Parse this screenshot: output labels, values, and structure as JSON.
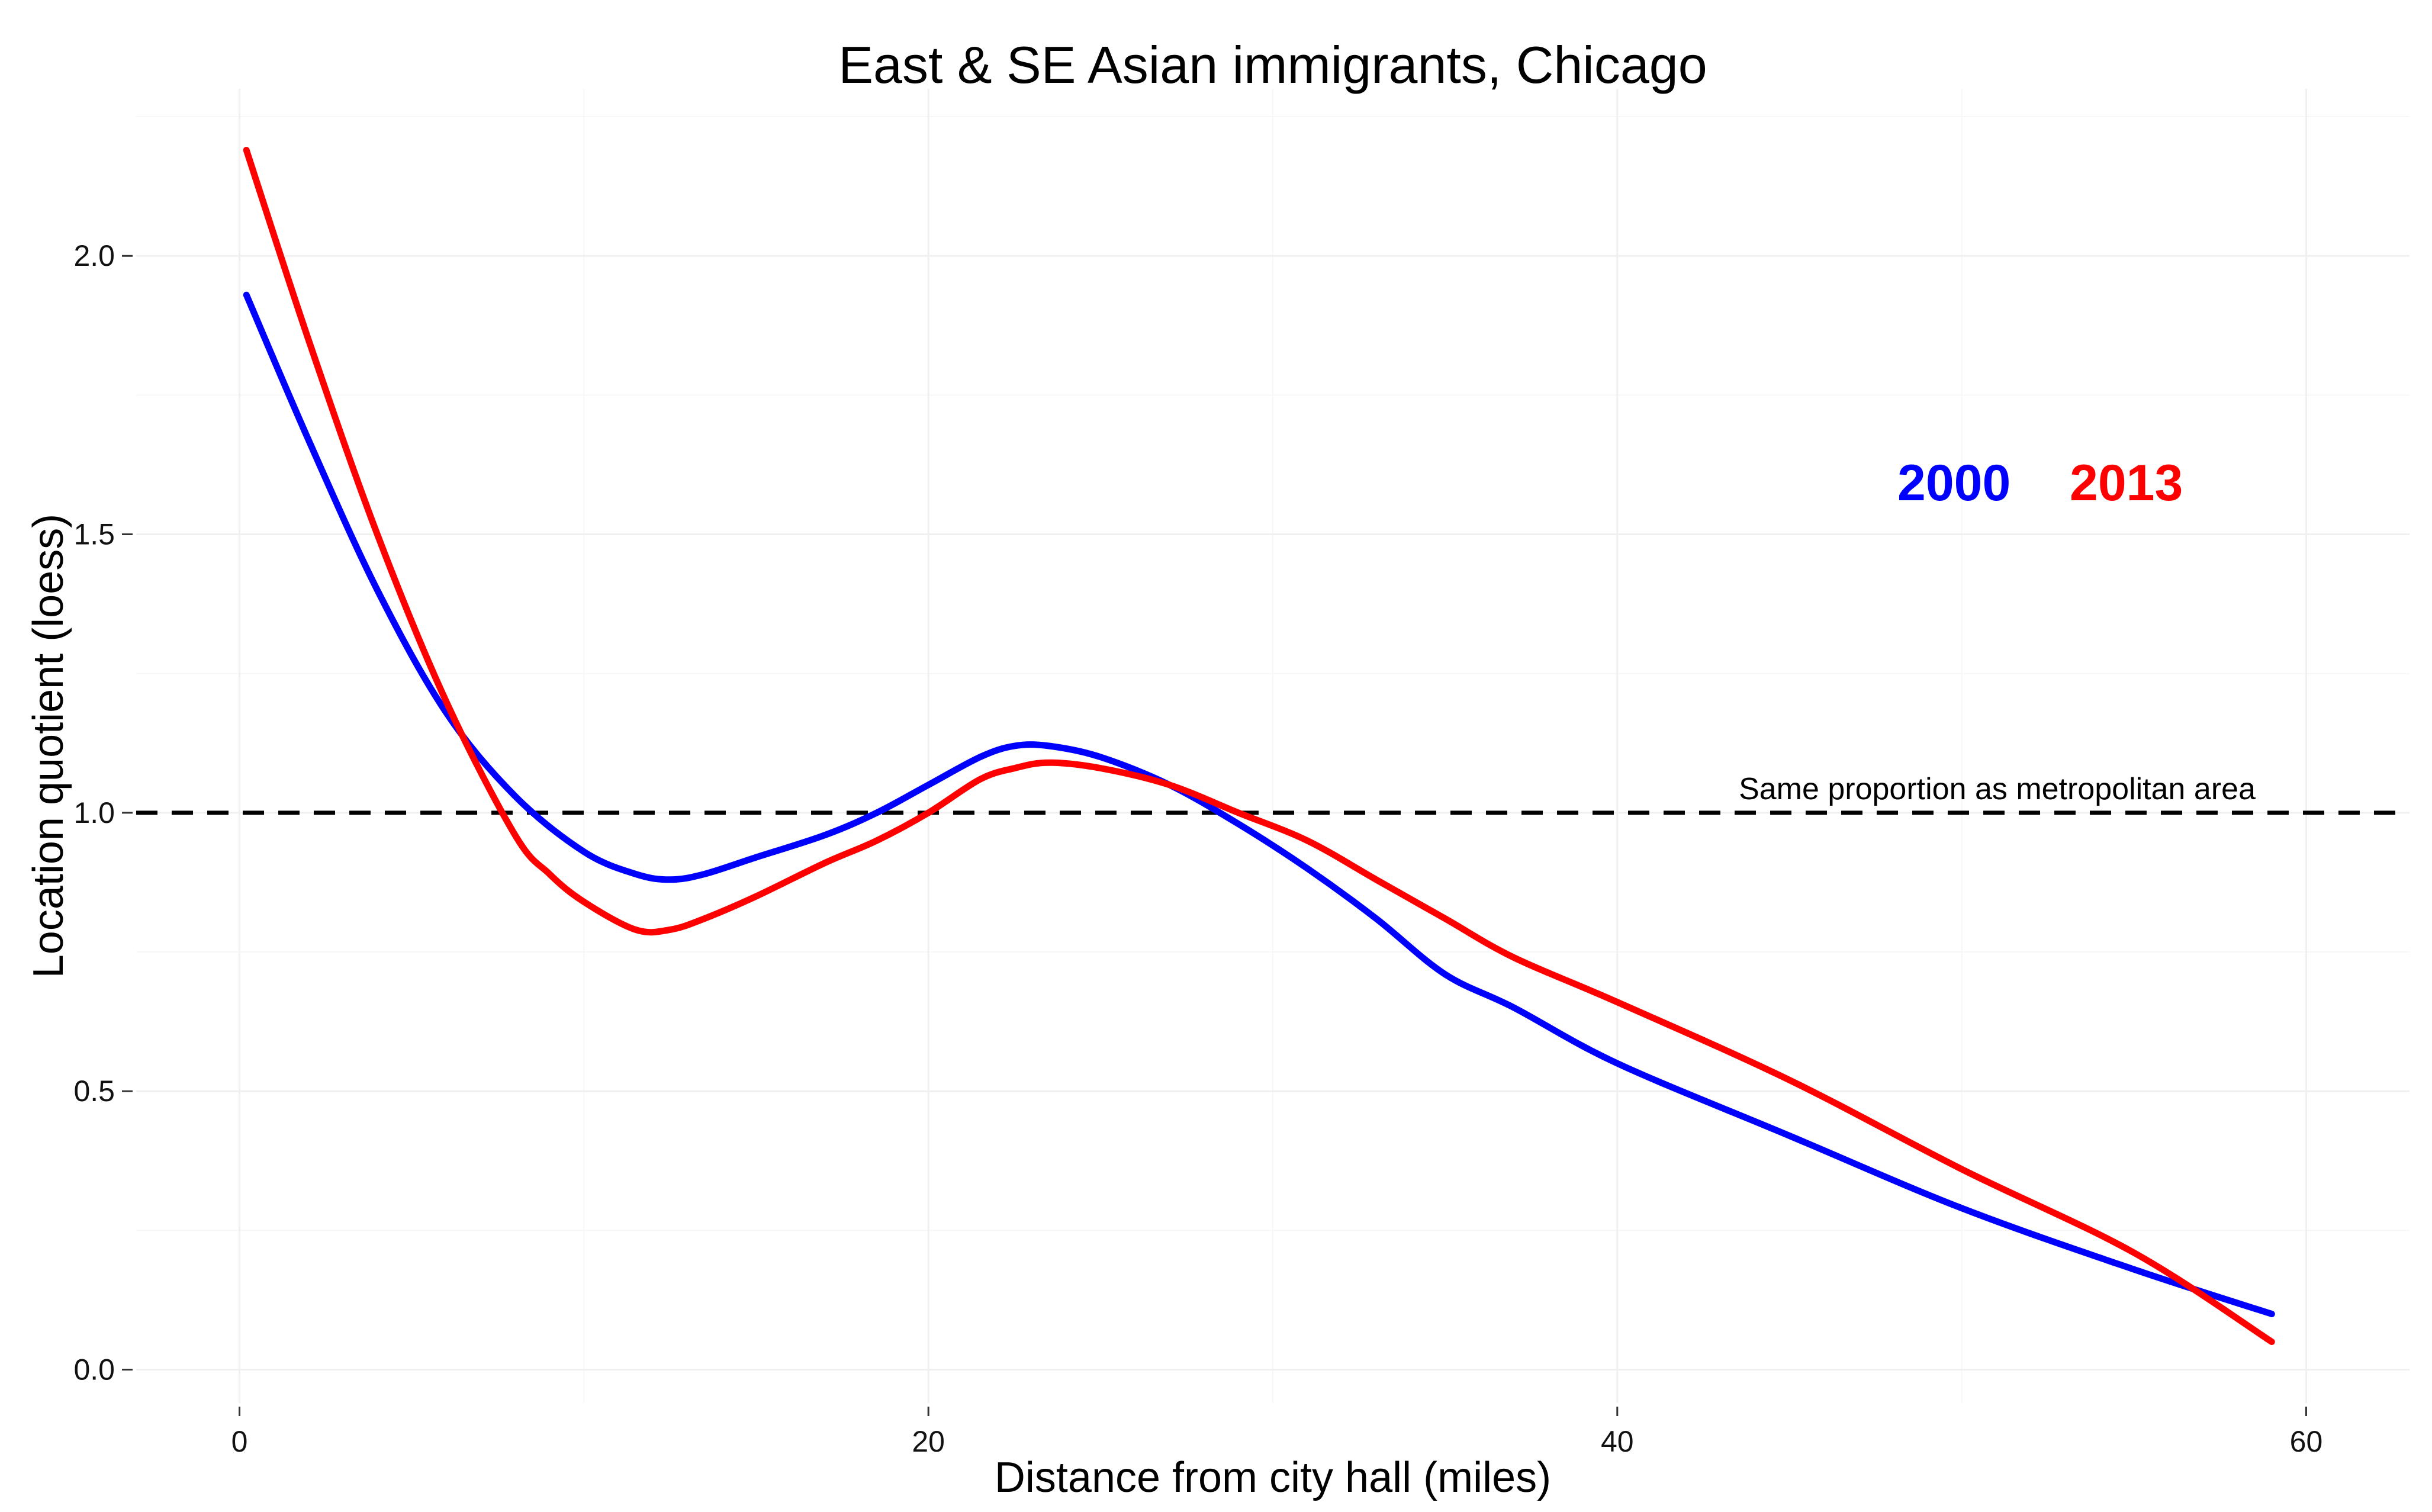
{
  "chart_data": {
    "type": "line",
    "title": "East & SE Asian immigrants, Chicago",
    "xlabel": "Distance from city hall (miles)",
    "ylabel": "Location quotient (loess)",
    "xlim": [
      -3,
      63
    ],
    "ylim": [
      -0.06,
      2.3
    ],
    "x_ticks": [
      0,
      20,
      40,
      60
    ],
    "x_tick_labels": [
      "0",
      "20",
      "40",
      "60"
    ],
    "y_ticks": [
      0,
      0.5,
      1,
      1.5,
      2
    ],
    "y_tick_labels": [
      "0.0",
      "0.5",
      "1.0",
      "1.5",
      "2.0"
    ],
    "grid": true,
    "legend_position": "top-right, inline labels",
    "series": [
      {
        "name": "2000",
        "color": "#0000ff",
        "x": [
          0.2,
          2,
          4,
          6,
          8,
          10,
          11.5,
          12.5,
          13.5,
          15,
          17,
          18.5,
          20,
          21.5,
          22.5,
          23.5,
          25,
          27,
          29,
          31,
          33,
          35,
          37,
          40,
          45,
          50,
          55,
          59
        ],
        "y": [
          1.93,
          1.67,
          1.4,
          1.18,
          1.03,
          0.93,
          0.89,
          0.88,
          0.89,
          0.92,
          0.96,
          1.0,
          1.05,
          1.1,
          1.12,
          1.12,
          1.1,
          1.05,
          0.98,
          0.9,
          0.81,
          0.71,
          0.65,
          0.55,
          0.42,
          0.29,
          0.18,
          0.1
        ]
      },
      {
        "name": "2013",
        "color": "#ff0000",
        "x": [
          0.2,
          2,
          4,
          6,
          8,
          9,
          10,
          11.5,
          12.5,
          13.5,
          15,
          17,
          18.5,
          20,
          21.5,
          22.5,
          23.5,
          25,
          27,
          29,
          31,
          33,
          35,
          37,
          40,
          45,
          50,
          55,
          59
        ],
        "y": [
          2.19,
          1.85,
          1.5,
          1.2,
          0.96,
          0.89,
          0.84,
          0.79,
          0.79,
          0.81,
          0.85,
          0.91,
          0.95,
          1.0,
          1.06,
          1.08,
          1.09,
          1.08,
          1.05,
          1.0,
          0.95,
          0.88,
          0.81,
          0.74,
          0.66,
          0.52,
          0.36,
          0.21,
          0.05
        ]
      }
    ],
    "reference_lines": [
      {
        "y": 1.0,
        "style": "dashed",
        "color": "#000000",
        "label": "Same proportion as metropolitan area"
      }
    ],
    "legend": [
      {
        "label": "2000",
        "color": "#0000ff"
      },
      {
        "label": "2013",
        "color": "#ff0000"
      }
    ]
  }
}
